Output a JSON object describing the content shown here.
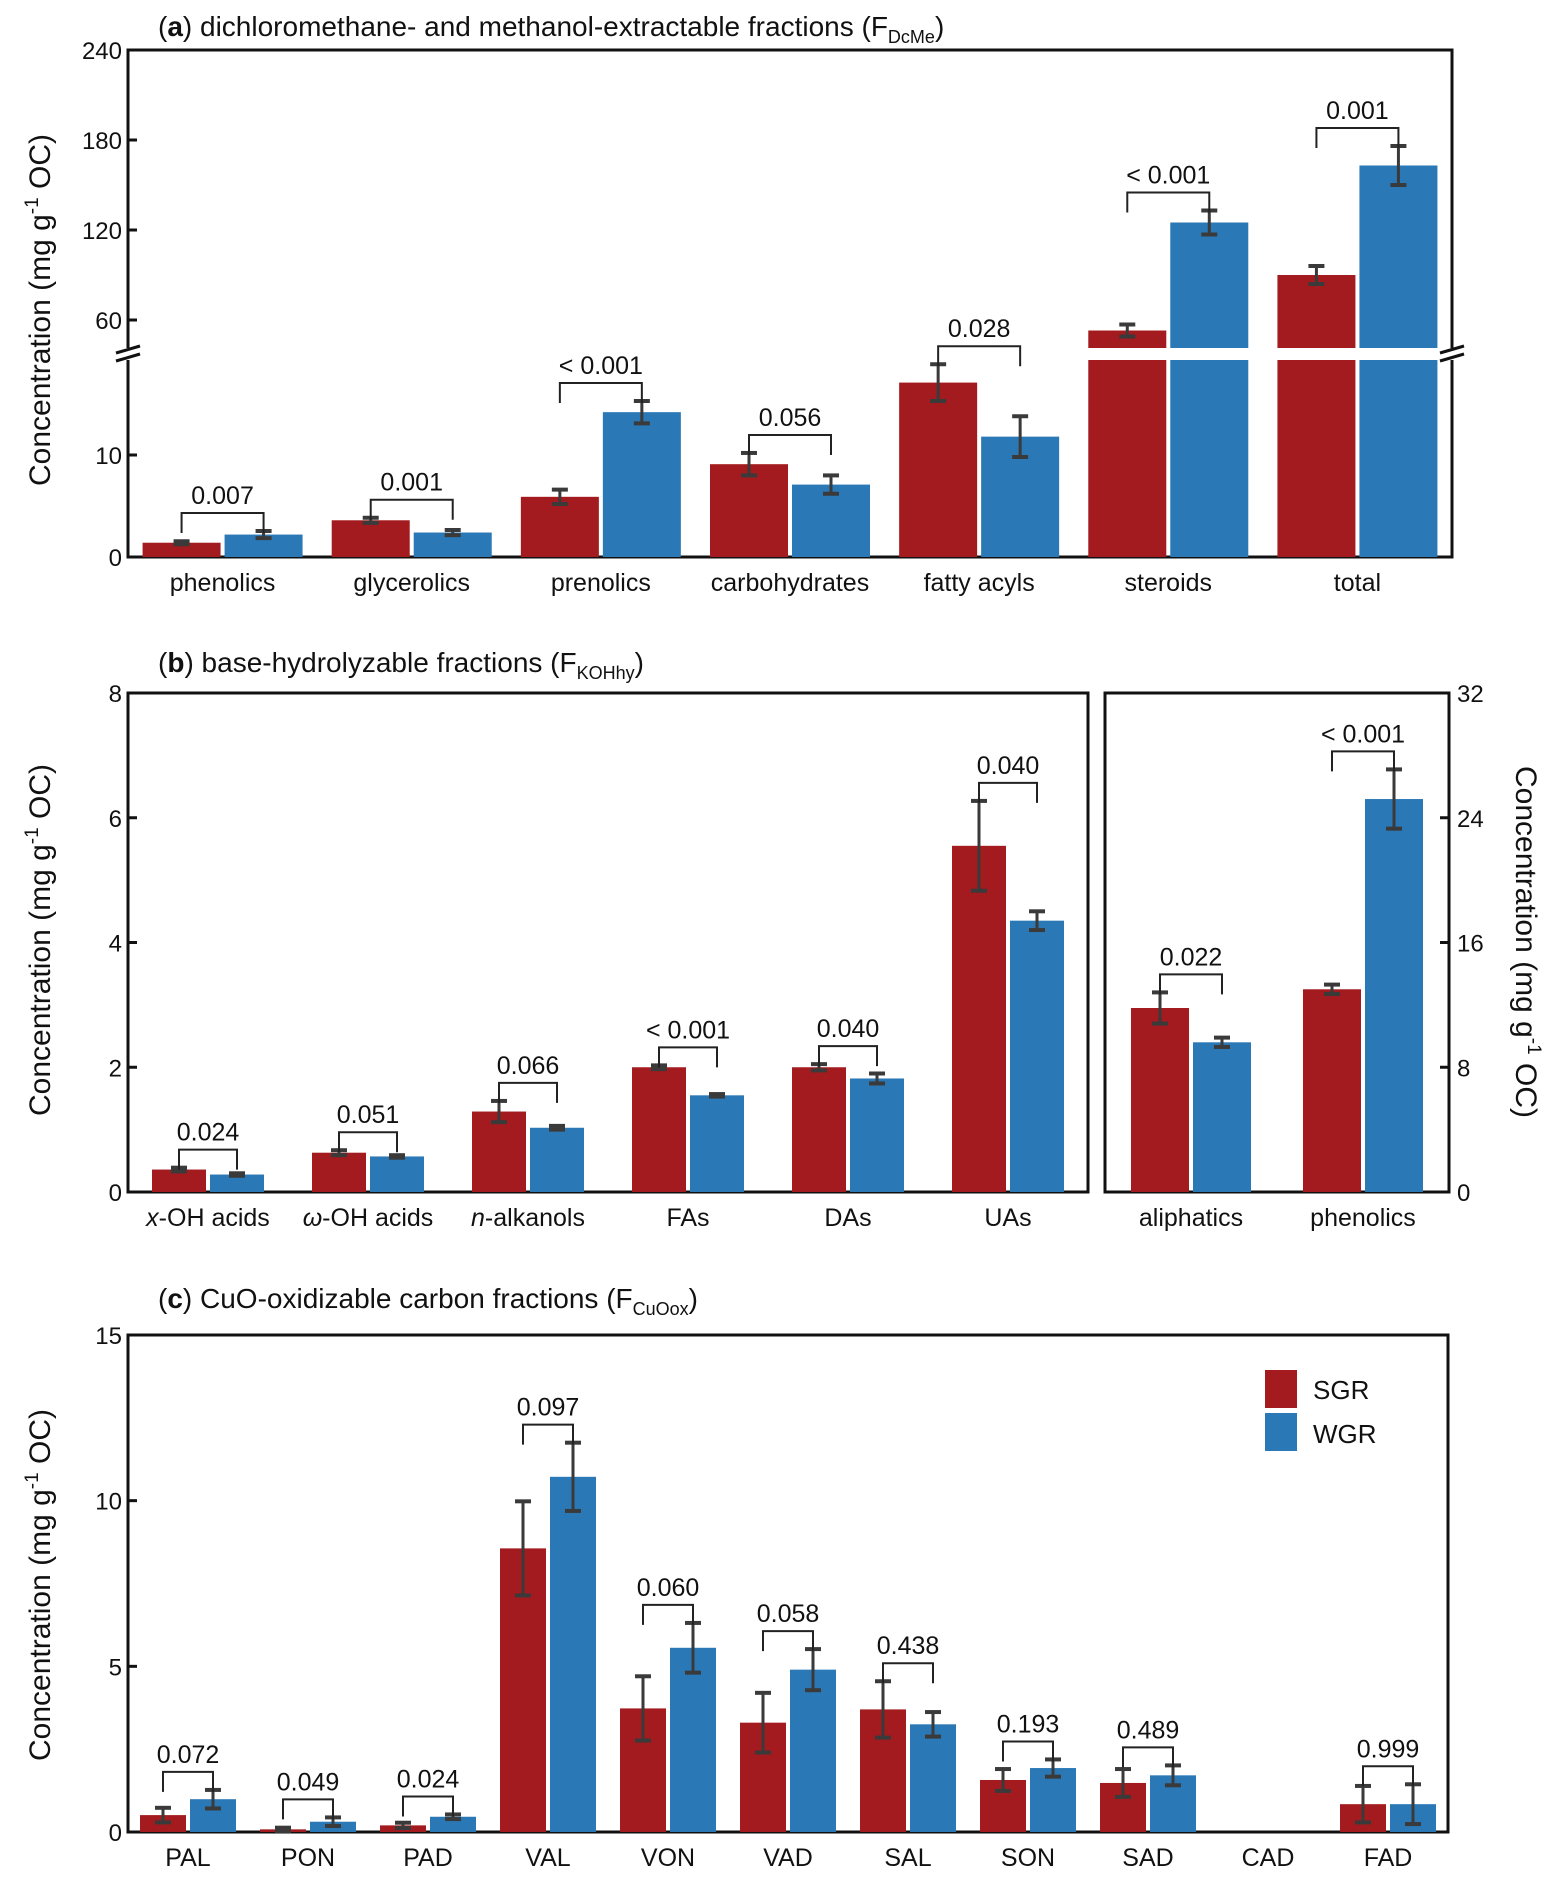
{
  "colors": {
    "SGR": "#a31b1f",
    "WGR": "#2a78b6",
    "error": "#3a3a3a",
    "axis": "#111111"
  },
  "legend": [
    {
      "name": "SGR",
      "color": "#a31b1f"
    },
    {
      "name": "WGR",
      "color": "#2a78b6"
    }
  ],
  "chart_data": [
    {
      "id": "a",
      "type": "bar",
      "title_letter": "a",
      "title": "dichloromethane- and methanol-extractable fractions (F",
      "title_sub": "DcMe",
      "title_end": ")",
      "ylabel": "Concentration (mg g",
      "ylabel_sup": "-1",
      "ylabel_end": " OC)",
      "axis_break": true,
      "lower_ylim": [
        0,
        20
      ],
      "upper_ylim": [
        40,
        240
      ],
      "lower_ticks": [
        "0",
        "10"
      ],
      "upper_ticks": [
        "60",
        "120",
        "180",
        "240"
      ],
      "categories": [
        "phenolics",
        "glycerolics",
        "prenolics",
        "carbohydrates",
        "fatty acyls",
        "steroids",
        "total"
      ],
      "series": [
        {
          "name": "SGR",
          "values": [
            1.4,
            3.6,
            5.9,
            9.1,
            17.1,
            53,
            90
          ],
          "errors": [
            0.15,
            0.25,
            0.7,
            1.1,
            1.8,
            4,
            6
          ]
        },
        {
          "name": "WGR",
          "values": [
            2.2,
            2.4,
            14.2,
            7.1,
            11.8,
            125,
            163
          ],
          "errors": [
            0.35,
            0.25,
            1.1,
            0.9,
            2.0,
            8,
            13
          ]
        }
      ],
      "pvalues": [
        "0.007",
        "0.001",
        "< 0.001",
        "0.056",
        "0.028",
        "< 0.001",
        "0.001"
      ]
    },
    {
      "id": "b-left",
      "type": "bar",
      "title_letter": "b",
      "title": "base-hydrolyzable fractions (F",
      "title_sub": "KOHhy",
      "title_end": ")",
      "ylabel": "Concentration (mg g",
      "ylabel_sup": "-1",
      "ylabel_end": " OC)",
      "ylim": [
        0,
        8
      ],
      "ticks": [
        "0",
        "2",
        "4",
        "6",
        "8"
      ],
      "categories": [
        {
          "prefix": "x",
          "rest": "-OH acids"
        },
        {
          "prefix": "ω",
          "rest": "-OH acids"
        },
        {
          "prefix": "n",
          "rest": "-alkanols"
        },
        {
          "prefix": "",
          "rest": "FAs"
        },
        {
          "prefix": "",
          "rest": "DAs"
        },
        {
          "prefix": "",
          "rest": "UAs"
        }
      ],
      "series": [
        {
          "name": "SGR",
          "values": [
            0.36,
            0.63,
            1.29,
            2.0,
            2.0,
            5.55
          ],
          "errors": [
            0.03,
            0.04,
            0.17,
            0.03,
            0.05,
            0.72
          ]
        },
        {
          "name": "WGR",
          "values": [
            0.28,
            0.57,
            1.03,
            1.55,
            1.82,
            4.35
          ],
          "errors": [
            0.02,
            0.02,
            0.03,
            0.02,
            0.08,
            0.15
          ]
        }
      ],
      "pvalues": [
        "0.024",
        "0.051",
        "0.066",
        "< 0.001",
        "0.040",
        "0.040"
      ]
    },
    {
      "id": "b-right",
      "type": "bar",
      "ylabel": "Concentration (mg g",
      "ylabel_sup": "-1",
      "ylabel_end": " OC)",
      "ylim": [
        0,
        32
      ],
      "ticks": [
        "0",
        "8",
        "16",
        "24",
        "32"
      ],
      "categories": [
        "aliphatics",
        "phenolics"
      ],
      "series": [
        {
          "name": "SGR",
          "values": [
            11.8,
            13.0
          ],
          "errors": [
            1.0,
            0.3
          ]
        },
        {
          "name": "WGR",
          "values": [
            9.6,
            25.2
          ],
          "errors": [
            0.3,
            1.9
          ]
        }
      ],
      "pvalues": [
        "0.022",
        "< 0.001"
      ]
    },
    {
      "id": "c",
      "type": "bar",
      "title_letter": "c",
      "title": "CuO-oxidizable carbon fractions (F",
      "title_sub": "CuOox",
      "title_end": ")",
      "ylabel": "Concentration (mg g",
      "ylabel_sup": "-1",
      "ylabel_end": " OC)",
      "ylim": [
        0,
        15
      ],
      "ticks": [
        "0",
        "5",
        "10",
        "15"
      ],
      "legend_position": "top-right",
      "categories": [
        "PAL",
        "PON",
        "PAD",
        "VAL",
        "VON",
        "VAD",
        "SAL",
        "SON",
        "SAD",
        "CAD",
        "FAD"
      ],
      "series": [
        {
          "name": "SGR",
          "values": [
            0.51,
            0.08,
            0.2,
            8.56,
            3.73,
            3.3,
            3.7,
            1.57,
            1.48,
            0,
            0.84
          ],
          "errors": [
            0.22,
            0.05,
            0.08,
            1.42,
            0.97,
            0.9,
            0.85,
            0.33,
            0.42,
            0,
            0.55
          ]
        },
        {
          "name": "WGR",
          "values": [
            0.99,
            0.31,
            0.46,
            10.72,
            5.56,
            4.9,
            3.25,
            1.93,
            1.71,
            0,
            0.84
          ],
          "errors": [
            0.28,
            0.13,
            0.07,
            1.03,
            0.75,
            0.62,
            0.37,
            0.26,
            0.3,
            0,
            0.6
          ]
        }
      ],
      "pvalues": [
        "0.072",
        "0.049",
        "0.024",
        "0.097",
        "0.060",
        "0.058",
        "0.438",
        "0.193",
        "0.489",
        "",
        "0.999"
      ]
    }
  ]
}
